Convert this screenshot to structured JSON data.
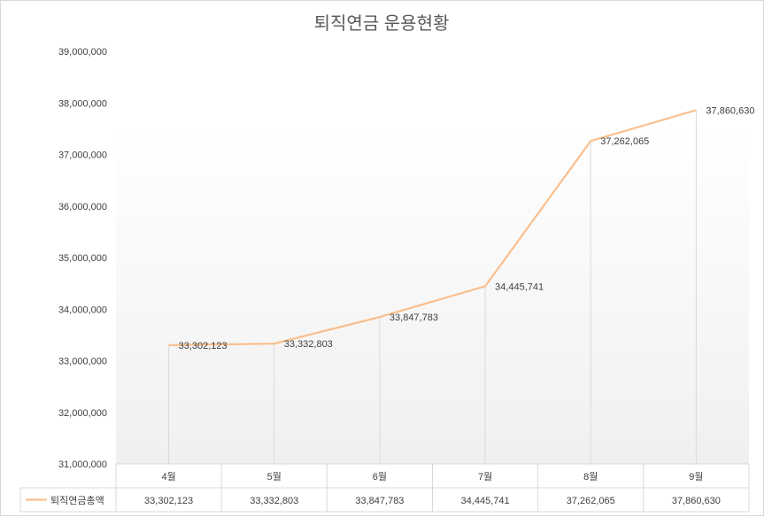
{
  "chart_data": {
    "type": "line",
    "title": "퇴직연금 운용현황",
    "categories": [
      "4월",
      "5월",
      "6월",
      "7월",
      "8월",
      "9월"
    ],
    "series": [
      {
        "name": "퇴직연금총액",
        "values": [
          33302123,
          33332803,
          33847783,
          34445741,
          37262065,
          37860630
        ],
        "value_labels": [
          "33,302,123",
          "33,332,803",
          "33,847,783",
          "34,445,741",
          "37,262,065",
          "37,860,630"
        ],
        "color": "#fac090"
      }
    ],
    "ylim": [
      31000000,
      39000000
    ],
    "yticks": [
      31000000,
      32000000,
      33000000,
      34000000,
      35000000,
      36000000,
      37000000,
      38000000,
      39000000
    ],
    "ytick_labels": [
      "31,000,000",
      "32,000,000",
      "33,000,000",
      "34,000,000",
      "35,000,000",
      "36,000,000",
      "37,000,000",
      "38,000,000",
      "39,000,000"
    ],
    "grid": "vertical drop lines",
    "legend": "data table",
    "data_table": true
  }
}
